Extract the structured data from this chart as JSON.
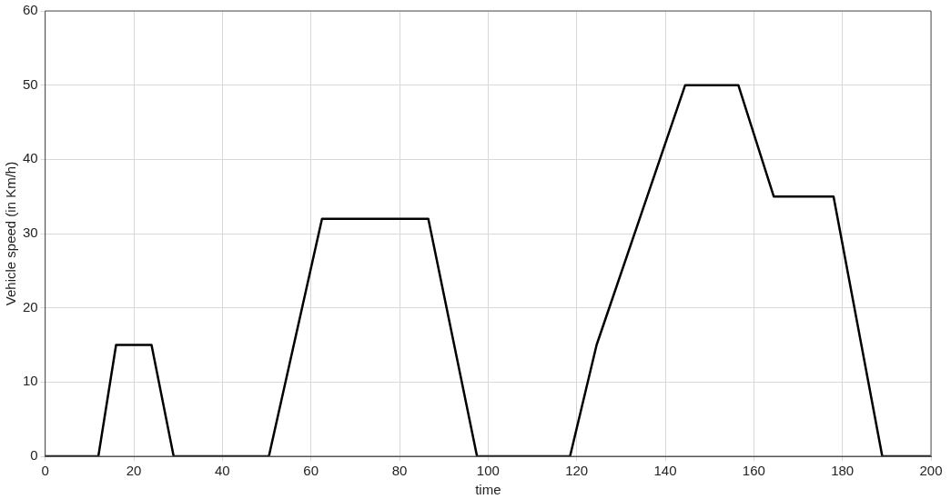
{
  "chart_data": {
    "type": "line",
    "xlabel": "time",
    "ylabel": "Vehicle speed (in Km/h)",
    "x": [
      0,
      12,
      16,
      24,
      29,
      50.5,
      62.5,
      86.5,
      97.5,
      118.5,
      124.5,
      144.5,
      156.5,
      164.5,
      178,
      189,
      200
    ],
    "series": [
      {
        "color": "#000000",
        "values": [
          0,
          0,
          15,
          15,
          0,
          0,
          32,
          32,
          0,
          0,
          15,
          50,
          50,
          35,
          35,
          0,
          0
        ]
      }
    ],
    "xlim": [
      0,
      200
    ],
    "xticks": [
      0,
      20,
      40,
      60,
      80,
      100,
      120,
      140,
      160,
      180,
      200
    ],
    "ylim": [
      0,
      60
    ],
    "yticks": [
      0,
      10,
      20,
      30,
      40,
      50,
      60
    ],
    "grid": true,
    "legend": false,
    "marker": "none",
    "line_style": "solid"
  }
}
